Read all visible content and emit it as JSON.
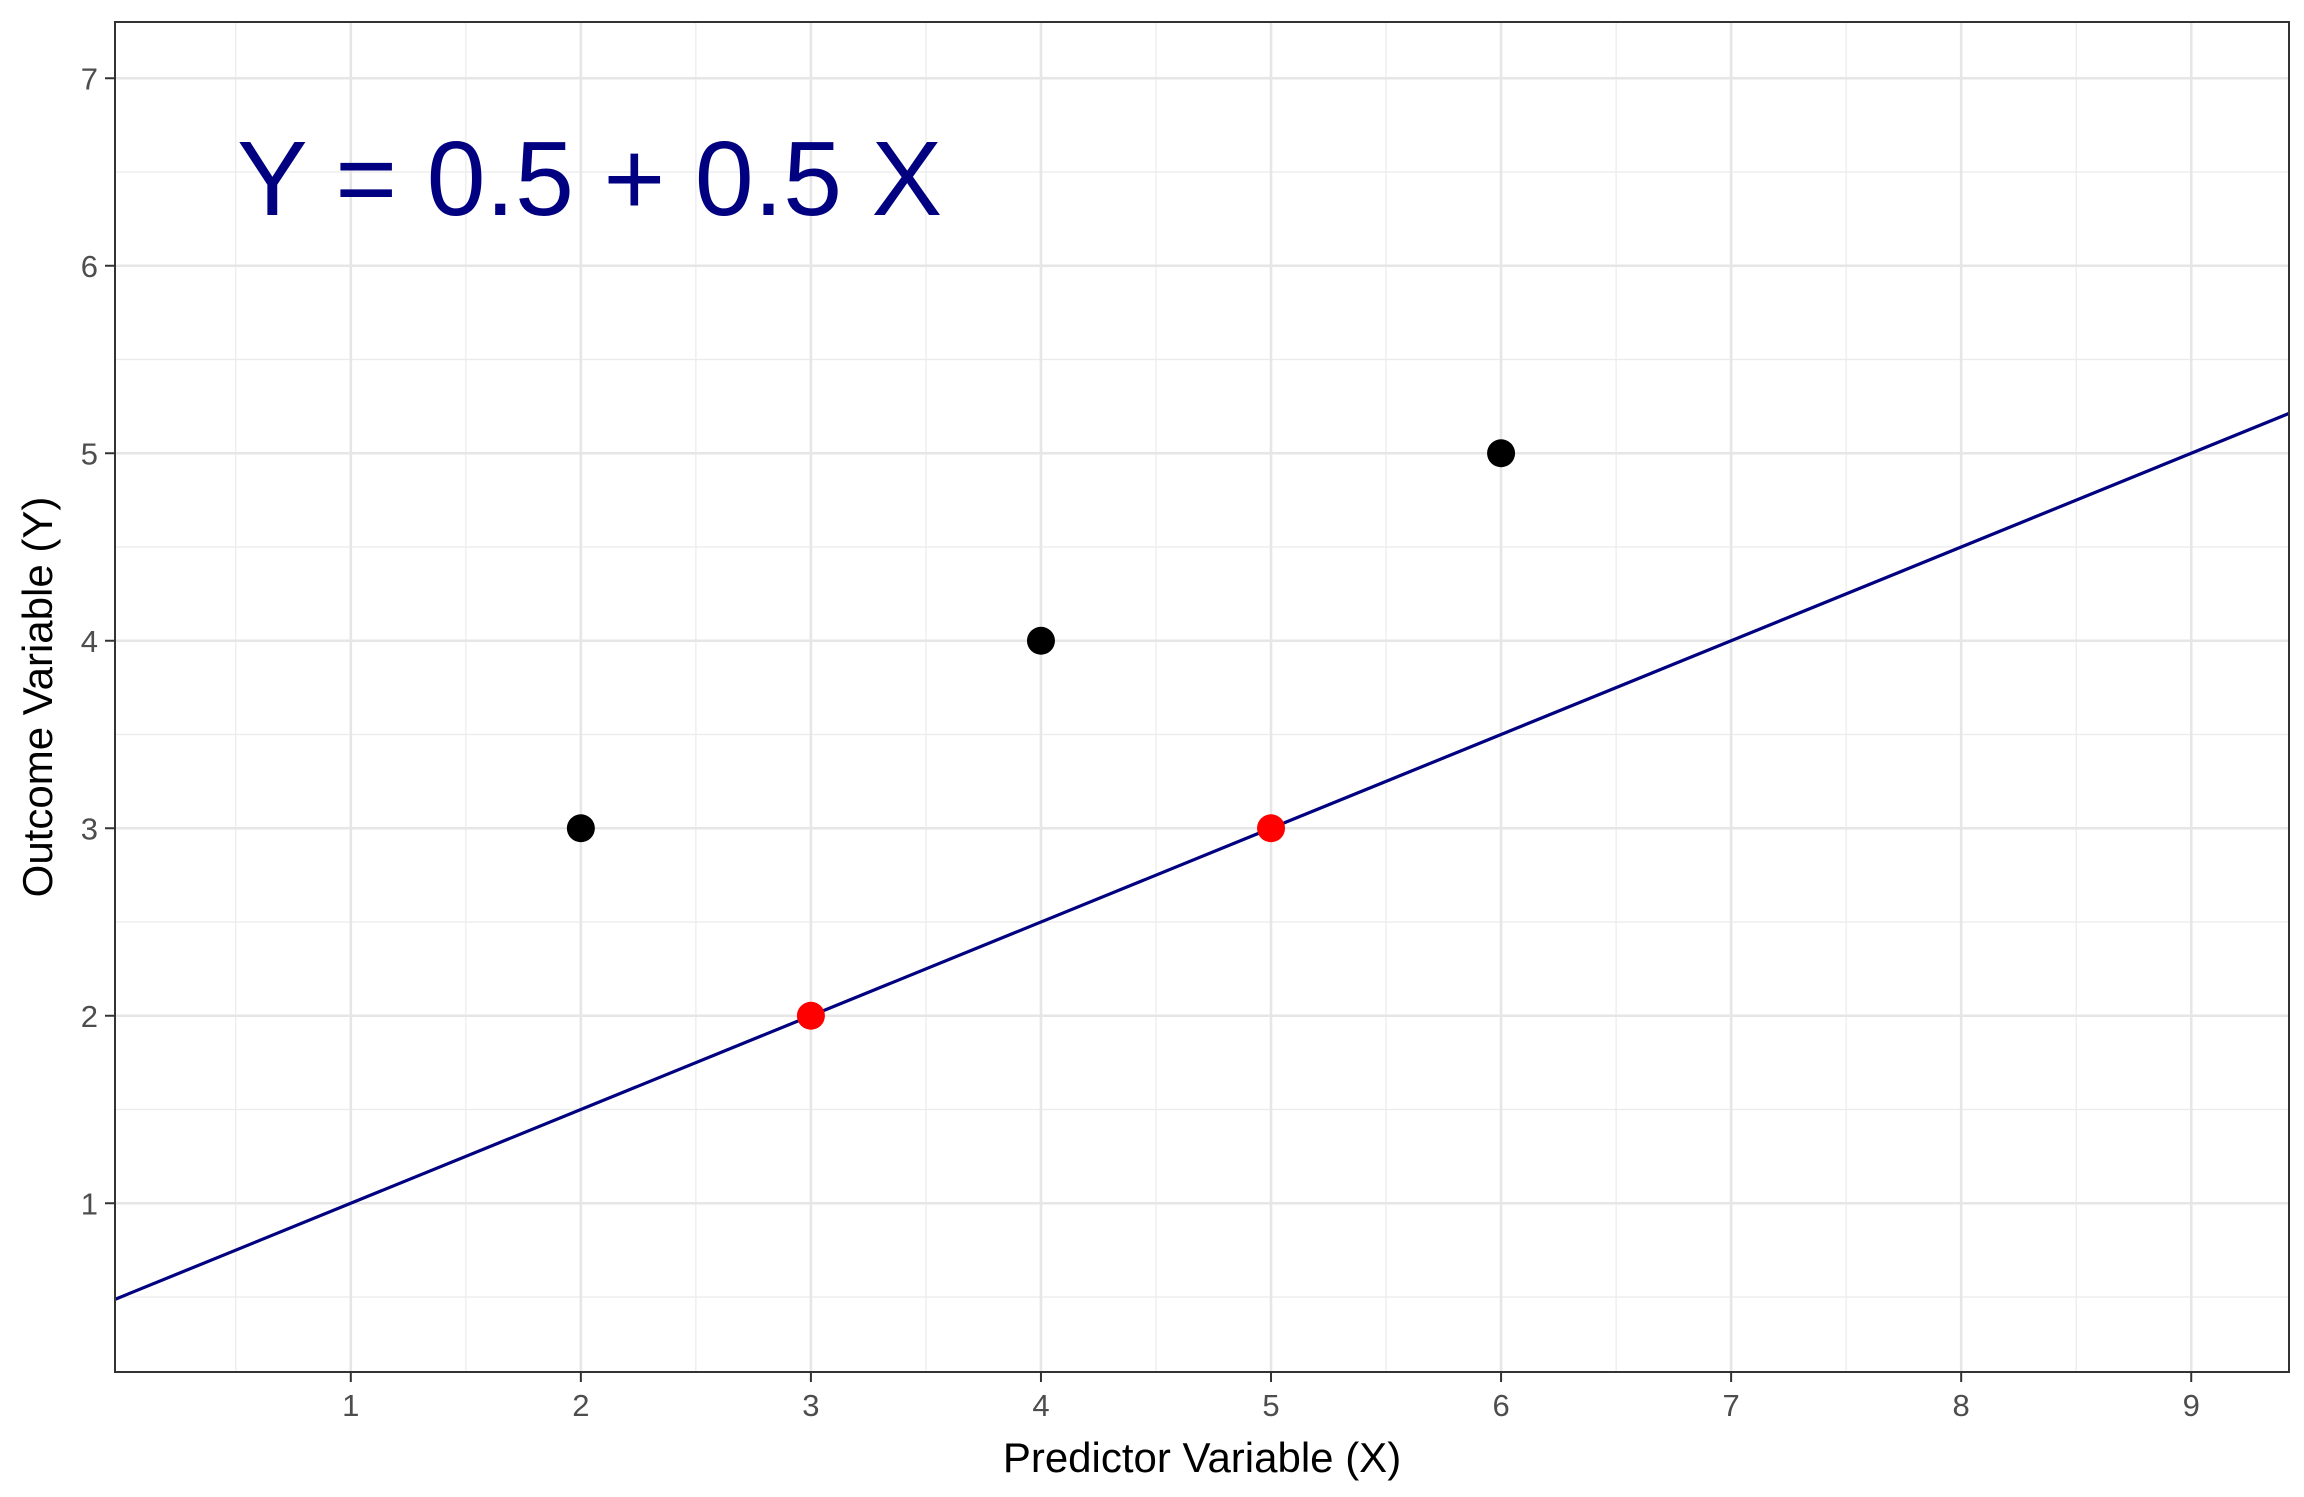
{
  "chart_data": {
    "type": "scatter",
    "title": "",
    "xlabel": "Predictor Variable (X)",
    "ylabel": "Outcome Variable (Y)",
    "xlim": [
      -0.025,
      9.425
    ],
    "ylim": [
      0.1,
      7.3
    ],
    "x_ticks": [
      1,
      2,
      3,
      4,
      5,
      6,
      7,
      8,
      9
    ],
    "y_ticks": [
      1,
      2,
      3,
      4,
      5,
      6,
      7
    ],
    "grid": true,
    "legend": "none",
    "annotation": {
      "text": "Y = 0.5 + 0.5 X",
      "color": "#000080"
    },
    "line": {
      "intercept": 0.5,
      "slope": 0.5,
      "color": "#000080"
    },
    "series": [
      {
        "color": "#000000",
        "points": [
          {
            "x": 2,
            "y": 3
          },
          {
            "x": 4,
            "y": 4
          },
          {
            "x": 6,
            "y": 5
          }
        ]
      },
      {
        "color": "#ff0000",
        "points": [
          {
            "x": 3,
            "y": 2
          },
          {
            "x": 5,
            "y": 3
          }
        ]
      }
    ]
  }
}
